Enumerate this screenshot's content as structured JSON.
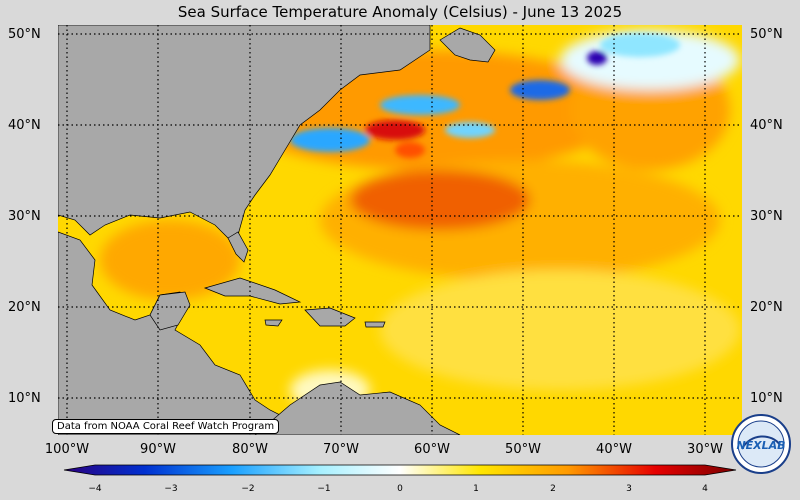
{
  "title": "Sea Surface Temperature Anomaly (Celsius) - June 13 2025",
  "attribution": "Data from NOAA Coral Reef Watch Program",
  "logo": {
    "text": "NEXLAB",
    "name": "nexlab-logo"
  },
  "lat_labels": [
    "50°N",
    "40°N",
    "30°N",
    "20°N",
    "10°N"
  ],
  "lon_labels": [
    "100°W",
    "90°W",
    "80°W",
    "70°W",
    "60°W",
    "50°W",
    "40°W",
    "30°W"
  ],
  "colorbar": {
    "ticks": [
      "−4",
      "−3",
      "−2",
      "−1",
      "0",
      "1",
      "2",
      "3",
      "4"
    ],
    "range": [
      -4,
      4
    ],
    "colors": [
      "#2a007f",
      "#0050e6",
      "#20a8ff",
      "#a6f0ff",
      "#ffffff",
      "#ffe600",
      "#ff9a00",
      "#e60000",
      "#7a0000"
    ]
  },
  "map_colors": {
    "land": "#a8a8a8",
    "warm": "#ffb000",
    "cold": "#2aa7ff",
    "hot": "#d81010"
  }
}
